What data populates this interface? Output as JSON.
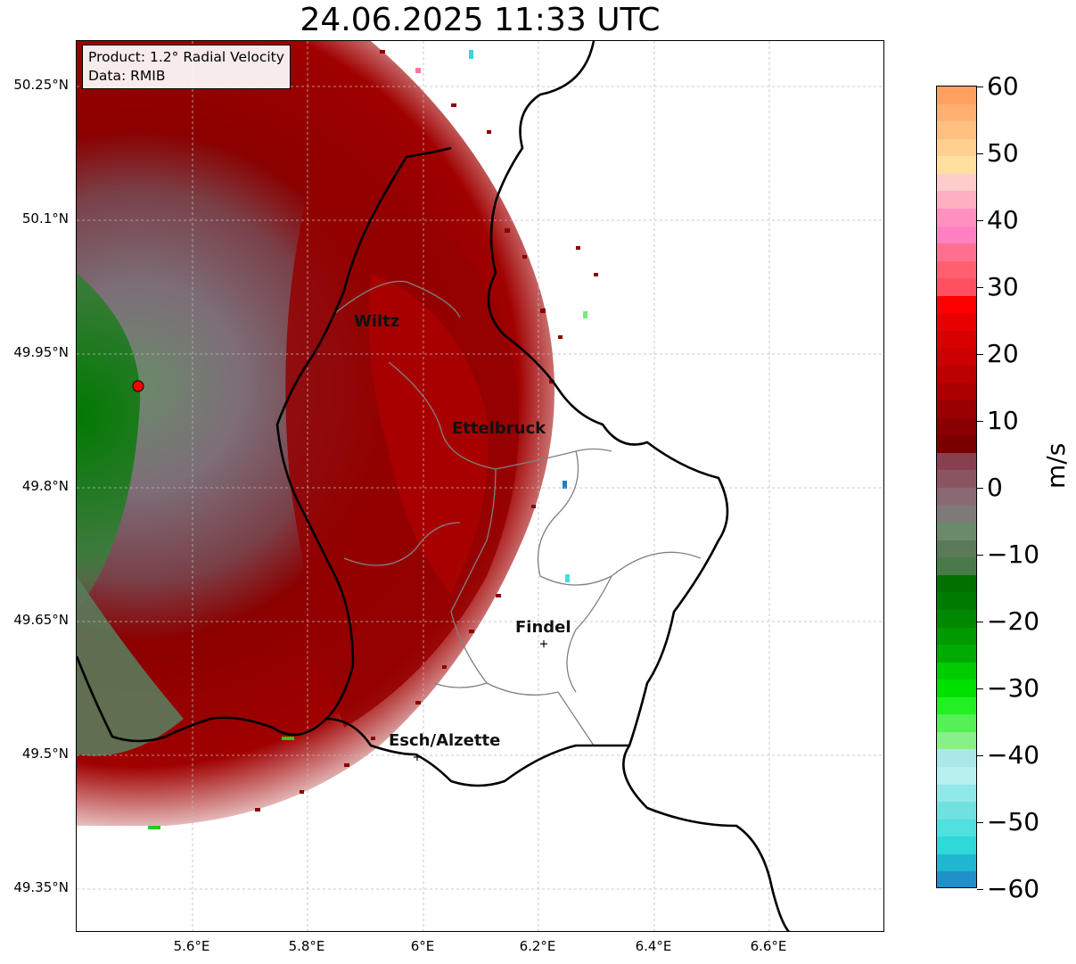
{
  "title": "24.06.2025 11:33 UTC",
  "info": {
    "product": "Product: 1.2° Radial Velocity",
    "data_source": "Data: RMIB"
  },
  "lat_ticks": [
    "50.25°N",
    "50.1°N",
    "49.95°N",
    "49.8°N",
    "49.65°N",
    "49.5°N",
    "49.35°N"
  ],
  "lon_ticks": [
    "5.6°E",
    "5.8°E",
    "6°E",
    "6.2°E",
    "6.4°E",
    "6.6°E"
  ],
  "cities": [
    {
      "name": "Wiltz"
    },
    {
      "name": "Ettelbruck"
    },
    {
      "name": "Findel"
    },
    {
      "name": "Esch/Alzette"
    }
  ],
  "colorbar": {
    "label": "m/s",
    "range": [
      -60,
      60
    ],
    "ticks": [
      "60",
      "50",
      "40",
      "30",
      "20",
      "10",
      "0",
      "−10",
      "−20",
      "−30",
      "−40",
      "−50",
      "−60"
    ]
  },
  "colors": {
    "positive_dark": "#8b0000",
    "positive_mid": "#c00000",
    "near_zero_pos": "#8a6a70",
    "near_zero_neg": "#5a7a5a",
    "negative": "#007a00",
    "radar_marker": "#ff0000"
  },
  "icons": [
    "radar-site-marker",
    "city-marker-cross"
  ]
}
